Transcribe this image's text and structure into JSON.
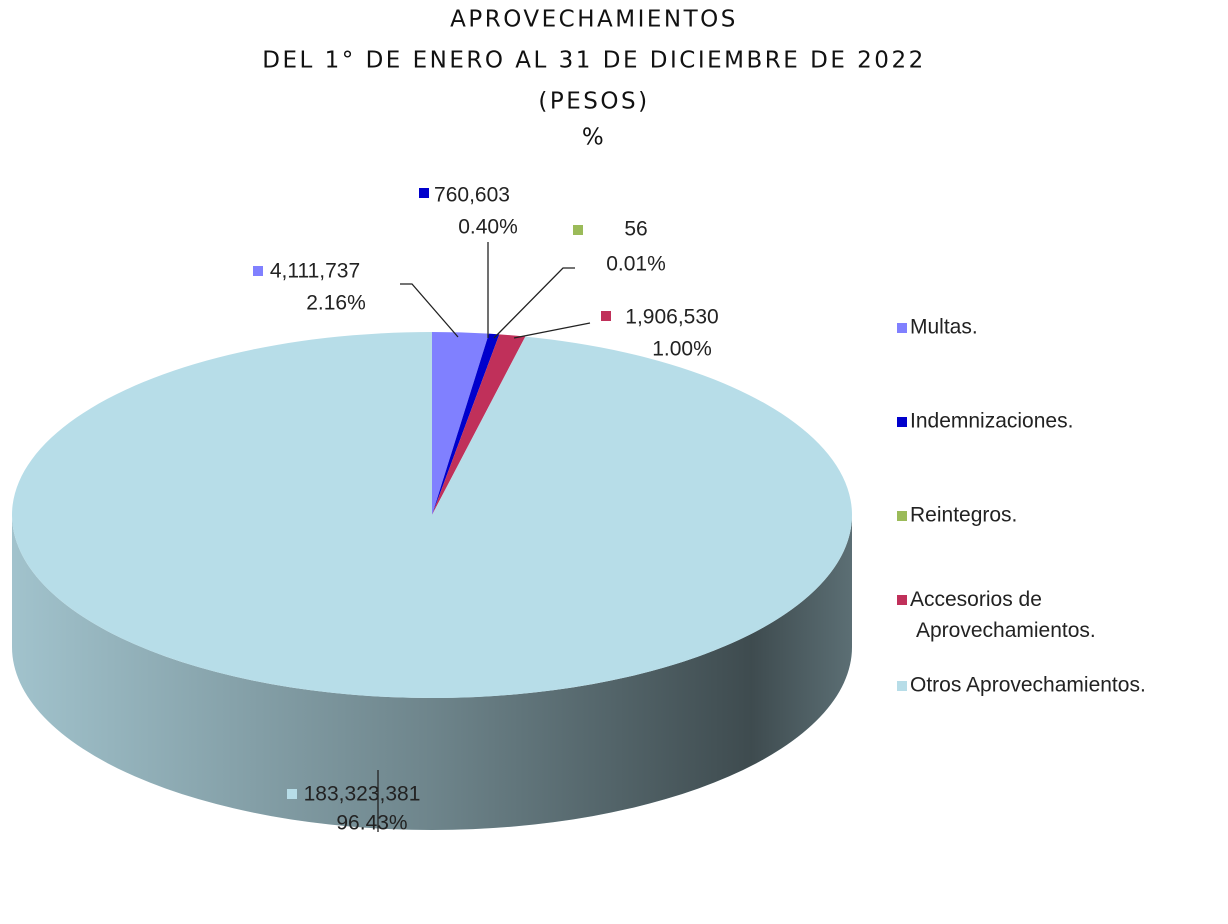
{
  "chart_data": {
    "type": "pie",
    "title": [
      "APROVECHAMIENTOS",
      "DEL 1° DE ENERO AL 31 DE DICIEMBRE DE 2022",
      "(PESOS)",
      "%"
    ],
    "categories": [
      "Multas.",
      "Indemnizaciones.",
      "Reintegros.",
      "Accesorios de Aprovechamientos.",
      "Otros Aprovechamientos."
    ],
    "values": [
      4111737,
      760603,
      56,
      1906530,
      183323381
    ],
    "value_labels": [
      "4,111,737",
      "760,603",
      "56",
      "1,906,530",
      "183,323,381"
    ],
    "percentages": [
      2.16,
      0.4,
      0.01,
      1.0,
      96.43
    ],
    "percentage_labels": [
      "2.16%",
      "0.40%",
      "0.01%",
      "1.00%",
      "96.43%"
    ],
    "colors": [
      "#8080ff",
      "#0000cc",
      "#9bbb59",
      "#c0305a",
      "#b7dde8"
    ],
    "legend": "right"
  }
}
